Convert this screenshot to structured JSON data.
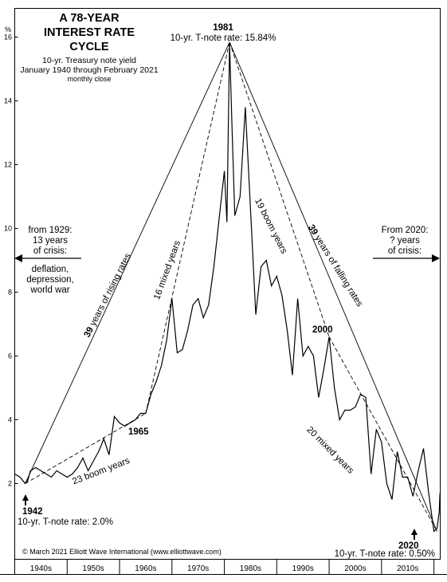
{
  "chart_data": {
    "type": "line",
    "title_lines": [
      "A 78-YEAR",
      "INTEREST RATE",
      "CYCLE"
    ],
    "subtitle_lines": [
      "10-yr. Treasury note yield",
      "January 1940 through February 2021"
    ],
    "subtitle_small": "monthly close",
    "ylabel": "%",
    "ylim": [
      0,
      16
    ],
    "yticks": [
      "2",
      "4",
      "6",
      "8",
      "10",
      "12",
      "14",
      "16"
    ],
    "ytick_values": [
      2,
      4,
      6,
      8,
      10,
      12,
      14,
      16
    ],
    "xlim": [
      1940,
      2021.2
    ],
    "decades": [
      "1940s",
      "1950s",
      "1960s",
      "1970s",
      "1980s",
      "1990s",
      "2000s",
      "2010s"
    ],
    "series": [
      {
        "x": [
          1940,
          1941,
          1942,
          1942.5,
          1943,
          1944,
          1945,
          1946,
          1947,
          1948,
          1949,
          1950,
          1951,
          1952,
          1953,
          1954,
          1955,
          1956,
          1957,
          1958,
          1958.5,
          1959,
          1960,
          1961,
          1962,
          1963,
          1964,
          1965,
          1966,
          1967,
          1968,
          1969,
          1970,
          1971,
          1972,
          1973,
          1974,
          1975,
          1976,
          1977,
          1978,
          1979,
          1980,
          1980.5,
          1981,
          1981.5,
          1982,
          1983,
          1984,
          1985,
          1986,
          1987,
          1988,
          1989,
          1990,
          1991,
          1992,
          1993,
          1994,
          1995,
          1996,
          1997,
          1998,
          1999,
          2000,
          2001,
          2002,
          2003,
          2004,
          2005,
          2006,
          2007,
          2008,
          2009,
          2010,
          2011,
          2012,
          2013,
          2014,
          2015,
          2016,
          2017,
          2018,
          2019,
          2020,
          2020.6,
          2021,
          2021.15
        ],
        "values": [
          2.3,
          2.2,
          2.0,
          2.1,
          2.4,
          2.5,
          2.4,
          2.3,
          2.2,
          2.4,
          2.3,
          2.2,
          2.3,
          2.5,
          2.8,
          2.4,
          2.7,
          3.0,
          3.4,
          2.9,
          3.5,
          4.1,
          3.9,
          3.8,
          3.9,
          4.0,
          4.2,
          4.2,
          4.8,
          5.2,
          5.7,
          6.5,
          7.8,
          6.1,
          6.2,
          6.8,
          7.6,
          7.8,
          7.2,
          7.6,
          8.8,
          10.3,
          11.8,
          10.2,
          15.8,
          13.0,
          10.4,
          11.0,
          13.8,
          10.6,
          7.3,
          8.8,
          9.0,
          8.2,
          8.5,
          7.9,
          6.8,
          5.4,
          7.8,
          6.0,
          6.3,
          6.0,
          4.7,
          5.6,
          6.6,
          5.0,
          4.0,
          4.3,
          4.3,
          4.4,
          4.8,
          4.7,
          2.3,
          3.7,
          3.3,
          2.0,
          1.5,
          3.0,
          2.2,
          2.2,
          1.6,
          2.4,
          3.1,
          1.7,
          0.5,
          0.6,
          1.1,
          1.7
        ]
      }
    ],
    "labels": {
      "peak_year": "1981",
      "peak_rate": "10-yr. T-note rate: 15.84%",
      "low_1942_year": "1942",
      "low_1942_rate": "10-yr. T-note rate: 2.0%",
      "low_2020_year": "2020",
      "low_2020_rate": "10-yr. T-note rate: 0.50%",
      "label_1965": "1965",
      "label_2000": "2000",
      "rising_num": "39",
      "rising_text": " years of rising rates",
      "falling_num": "39",
      "falling_text": " years of falling rates",
      "boom1": "23 boom years",
      "mixed1": "16 mixed years",
      "boom2": "19 boom years",
      "mixed2": "20 mixed years",
      "left_note": [
        "from 1929:",
        "13 years",
        "of crisis:"
      ],
      "left_note2": [
        "deflation,",
        "depression,",
        "world war"
      ],
      "right_note": [
        "From 2020:",
        "? years",
        "of crisis:"
      ],
      "copyright": "© March 2021 Elliott Wave International (www.elliottwave.com)"
    }
  }
}
